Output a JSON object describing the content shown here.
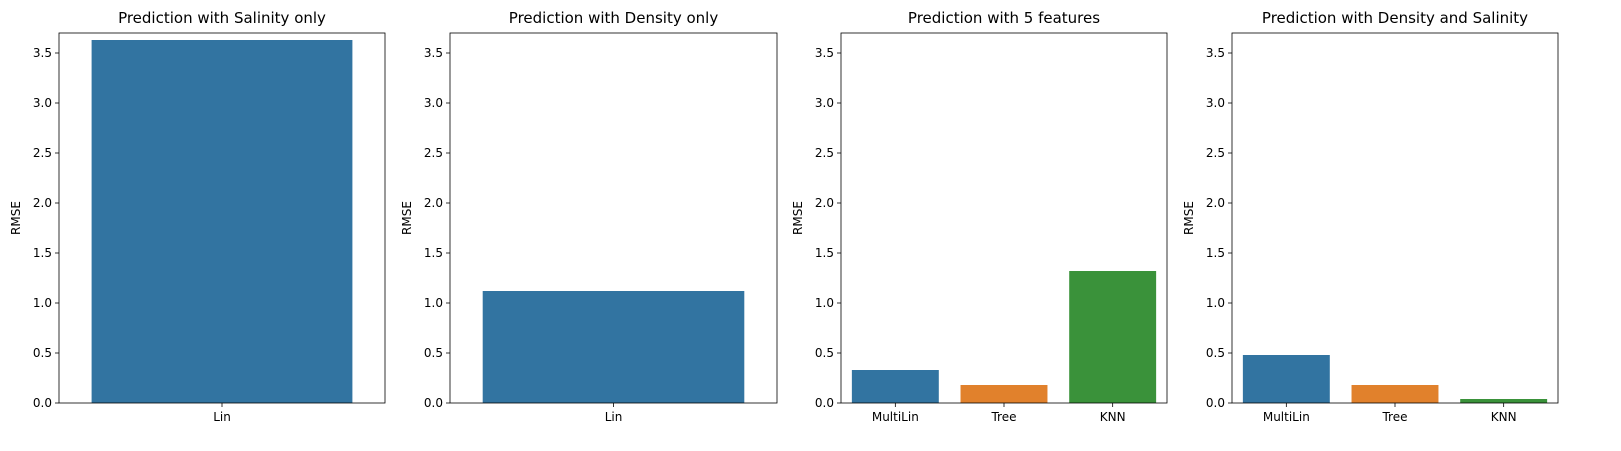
{
  "chart_data": [
    {
      "type": "bar",
      "title": "Prediction with Salinity only",
      "xlabel": "",
      "ylabel": "RMSE",
      "ylim": [
        0,
        3.7
      ],
      "yticks": [
        "0.0",
        "0.5",
        "1.0",
        "1.5",
        "2.0",
        "2.5",
        "3.0",
        "3.5"
      ],
      "categories": [
        "Lin"
      ],
      "values": [
        3.63
      ],
      "colors": [
        "#3274a1"
      ],
      "grid": false
    },
    {
      "type": "bar",
      "title": "Prediction with Density only",
      "xlabel": "",
      "ylabel": "RMSE",
      "ylim": [
        0,
        3.7
      ],
      "yticks": [
        "0.0",
        "0.5",
        "1.0",
        "1.5",
        "2.0",
        "2.5",
        "3.0",
        "3.5"
      ],
      "categories": [
        "Lin"
      ],
      "values": [
        1.12
      ],
      "colors": [
        "#3274a1"
      ],
      "grid": false
    },
    {
      "type": "bar",
      "title": "Prediction with 5 features",
      "xlabel": "",
      "ylabel": "RMSE",
      "ylim": [
        0,
        3.7
      ],
      "yticks": [
        "0.0",
        "0.5",
        "1.0",
        "1.5",
        "2.0",
        "2.5",
        "3.0",
        "3.5"
      ],
      "categories": [
        "MultiLin",
        "Tree",
        "KNN"
      ],
      "values": [
        0.33,
        0.18,
        1.32
      ],
      "colors": [
        "#3274a1",
        "#e1812c",
        "#3a923a"
      ],
      "grid": false
    },
    {
      "type": "bar",
      "title": "Prediction with Density and Salinity",
      "xlabel": "",
      "ylabel": "RMSE",
      "ylim": [
        0,
        3.7
      ],
      "yticks": [
        "0.0",
        "0.5",
        "1.0",
        "1.5",
        "2.0",
        "2.5",
        "3.0",
        "3.5"
      ],
      "categories": [
        "MultiLin",
        "Tree",
        "KNN"
      ],
      "values": [
        0.48,
        0.18,
        0.04
      ],
      "colors": [
        "#3274a1",
        "#e1812c",
        "#3a923a"
      ],
      "grid": false
    }
  ]
}
